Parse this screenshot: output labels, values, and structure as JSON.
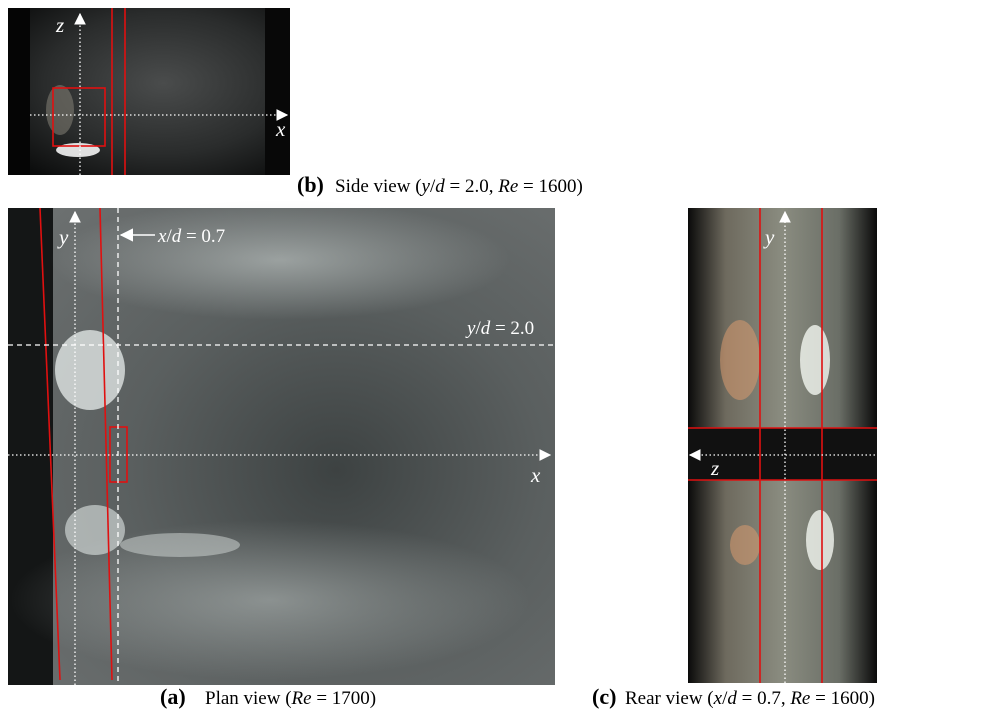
{
  "panel_b": {
    "label": "(b)",
    "caption": [
      {
        "text": "Side view (",
        "italic": false
      },
      {
        "text": "y",
        "italic": true
      },
      {
        "text": "/",
        "italic": false
      },
      {
        "text": "d",
        "italic": true
      },
      {
        "text": " = 2.0, ",
        "italic": false
      },
      {
        "text": "Re",
        "italic": true
      },
      {
        "text": " = 1600)",
        "italic": false
      }
    ],
    "axis_z": "z",
    "axis_x": "x"
  },
  "panel_a": {
    "label": "(a)",
    "caption": [
      {
        "text": "Plan view (",
        "italic": false
      },
      {
        "text": "Re",
        "italic": true
      },
      {
        "text": " = 1700)",
        "italic": false
      }
    ],
    "axis_y": "y",
    "axis_x": "x",
    "marker_x": [
      {
        "text": "x",
        "italic": true
      },
      {
        "text": "/",
        "italic": false
      },
      {
        "text": "d",
        "italic": true
      },
      {
        "text": " = 0.7",
        "italic": false
      }
    ],
    "marker_y": [
      {
        "text": "y",
        "italic": true
      },
      {
        "text": "/",
        "italic": false
      },
      {
        "text": "d",
        "italic": true
      },
      {
        "text": " = 2.0",
        "italic": false
      }
    ]
  },
  "panel_c": {
    "label": "(c)",
    "caption": [
      {
        "text": "Rear view (",
        "italic": false
      },
      {
        "text": "x",
        "italic": true
      },
      {
        "text": "/",
        "italic": false
      },
      {
        "text": "d",
        "italic": true
      },
      {
        "text": " = 0.7, ",
        "italic": false
      },
      {
        "text": "Re",
        "italic": true
      },
      {
        "text": " = 1600)",
        "italic": false
      }
    ],
    "axis_y": "y",
    "axis_z": "z"
  }
}
